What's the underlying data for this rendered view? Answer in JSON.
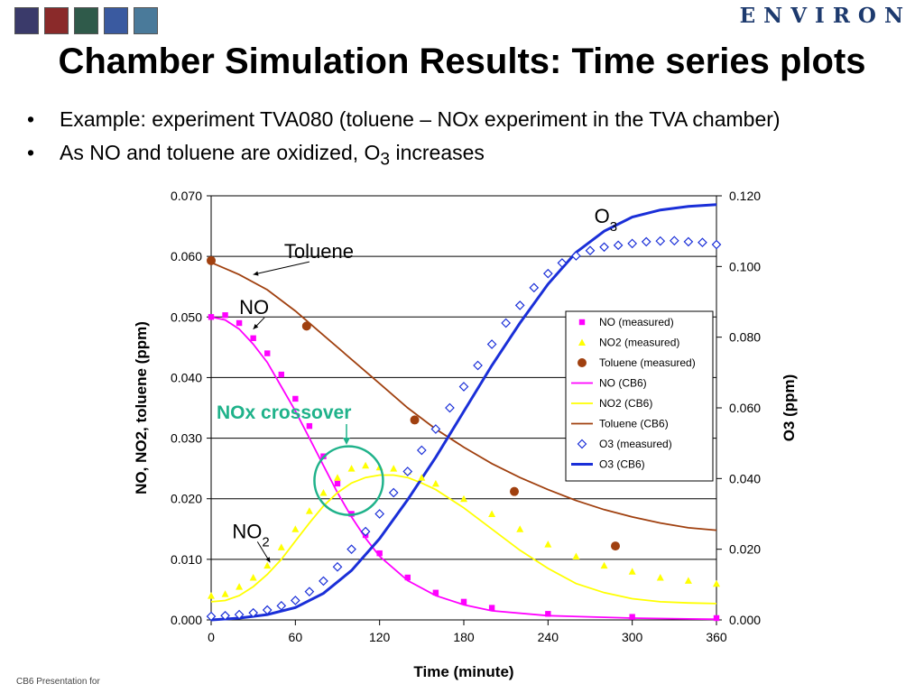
{
  "header": {
    "thumbnails": [
      {
        "name": "thumbnail-1",
        "color": "#3a3a6a"
      },
      {
        "name": "thumbnail-2",
        "color": "#8a2a2a"
      },
      {
        "name": "thumbnail-3",
        "color": "#2f5a4a"
      },
      {
        "name": "thumbnail-4",
        "color": "#3a5aa0"
      },
      {
        "name": "thumbnail-5",
        "color": "#4a7a9a"
      }
    ],
    "logo_text": "ENVIRON"
  },
  "slide": {
    "title": "Chamber Simulation Results: Time series plots",
    "bullets": [
      {
        "text": "Example: experiment TVA080 (toluene – NOx experiment in the TVA chamber)"
      },
      {
        "text_before": "As NO and toluene are oxidized, O",
        "sub": "3",
        "text_after": " increases"
      }
    ],
    "bullet_glyph": "•",
    "footer": "CB6 Presentation for"
  },
  "chart_data": {
    "type": "line",
    "xlabel": "Time (minute)",
    "ylabel_left": "NO, NO2, toluene (ppm)",
    "ylabel_right": "O3 (ppm)",
    "xlim": [
      0,
      360
    ],
    "ylim_left": [
      0,
      0.07
    ],
    "ylim_right": [
      0,
      0.12
    ],
    "x_ticks": [
      "0",
      "60",
      "120",
      "180",
      "240",
      "300",
      "360"
    ],
    "y_left_ticks": [
      "0.000",
      "0.010",
      "0.020",
      "0.030",
      "0.040",
      "0.050",
      "0.060",
      "0.070"
    ],
    "y_right_ticks": [
      "0.000",
      "0.020",
      "0.040",
      "0.060",
      "0.080",
      "0.100",
      "0.120"
    ],
    "grid": "horizontal",
    "legend_position": "right-middle",
    "colors": {
      "no": "#ff00ff",
      "no2": "#ffff00",
      "toluene": "#a0400f",
      "o3": "#1a2fd8",
      "circle": "#1fb28a"
    },
    "series": [
      {
        "name": "NO (measured)",
        "axis": "left",
        "kind": "markers",
        "marker": "square",
        "x": [
          0,
          10,
          20,
          30,
          40,
          50,
          60,
          70,
          80,
          90,
          100,
          110,
          120,
          140,
          160,
          180,
          200,
          240,
          300,
          360
        ],
        "y": [
          0.05,
          0.0503,
          0.049,
          0.0465,
          0.044,
          0.0405,
          0.0365,
          0.032,
          0.027,
          0.0225,
          0.0175,
          0.014,
          0.011,
          0.007,
          0.0045,
          0.003,
          0.002,
          0.001,
          0.0005,
          0.0003
        ]
      },
      {
        "name": "NO2 (measured)",
        "axis": "left",
        "kind": "markers",
        "marker": "triangle",
        "x": [
          0,
          10,
          20,
          30,
          40,
          50,
          60,
          70,
          80,
          90,
          100,
          110,
          120,
          130,
          140,
          150,
          160,
          180,
          200,
          220,
          240,
          260,
          280,
          300,
          320,
          340,
          360
        ],
        "y": [
          0.004,
          0.0043,
          0.0055,
          0.007,
          0.009,
          0.012,
          0.015,
          0.018,
          0.021,
          0.0235,
          0.025,
          0.0255,
          0.0252,
          0.025,
          0.0245,
          0.0235,
          0.0225,
          0.02,
          0.0175,
          0.015,
          0.0125,
          0.0105,
          0.009,
          0.008,
          0.007,
          0.0065,
          0.006
        ]
      },
      {
        "name": "Toluene (measured)",
        "axis": "left",
        "kind": "markers",
        "marker": "circle",
        "x": [
          0,
          68,
          145,
          216,
          288
        ],
        "y": [
          0.0593,
          0.0485,
          0.033,
          0.0212,
          0.0122
        ]
      },
      {
        "name": "NO (CB6)",
        "axis": "left",
        "kind": "line",
        "x": [
          0,
          10,
          20,
          30,
          40,
          50,
          60,
          70,
          80,
          90,
          100,
          110,
          120,
          140,
          160,
          180,
          200,
          240,
          300,
          360
        ],
        "y": [
          0.05,
          0.0495,
          0.048,
          0.0455,
          0.0425,
          0.0385,
          0.0345,
          0.03,
          0.0255,
          0.021,
          0.017,
          0.0135,
          0.0105,
          0.0065,
          0.004,
          0.0025,
          0.0015,
          0.0007,
          0.0003,
          0.0001
        ]
      },
      {
        "name": "NO2 (CB6)",
        "axis": "left",
        "kind": "line",
        "x": [
          0,
          10,
          20,
          30,
          40,
          50,
          60,
          70,
          80,
          90,
          100,
          110,
          120,
          130,
          140,
          150,
          160,
          180,
          200,
          220,
          240,
          260,
          280,
          300,
          320,
          340,
          360
        ],
        "y": [
          0.003,
          0.0032,
          0.004,
          0.0055,
          0.0075,
          0.01,
          0.013,
          0.016,
          0.0188,
          0.021,
          0.0226,
          0.0235,
          0.0239,
          0.0239,
          0.0235,
          0.0226,
          0.0215,
          0.0185,
          0.015,
          0.0115,
          0.0085,
          0.006,
          0.0045,
          0.0035,
          0.003,
          0.0028,
          0.0027
        ]
      },
      {
        "name": "Toluene (CB6)",
        "axis": "left",
        "kind": "line",
        "x": [
          0,
          20,
          40,
          60,
          80,
          100,
          120,
          140,
          160,
          180,
          200,
          220,
          240,
          260,
          280,
          300,
          320,
          340,
          360
        ],
        "y": [
          0.059,
          0.057,
          0.0545,
          0.051,
          0.047,
          0.043,
          0.039,
          0.035,
          0.0315,
          0.0285,
          0.0258,
          0.0235,
          0.0215,
          0.0197,
          0.0182,
          0.017,
          0.016,
          0.0152,
          0.0148
        ]
      },
      {
        "name": "O3 (measured)",
        "axis": "right",
        "kind": "markers",
        "marker": "diamond",
        "x": [
          0,
          10,
          20,
          30,
          40,
          50,
          60,
          70,
          80,
          90,
          100,
          110,
          120,
          130,
          140,
          150,
          160,
          170,
          180,
          190,
          200,
          210,
          220,
          230,
          240,
          250,
          260,
          270,
          280,
          290,
          300,
          310,
          320,
          330,
          340,
          350,
          360
        ],
        "y": [
          0.001,
          0.0012,
          0.0015,
          0.002,
          0.0028,
          0.004,
          0.0055,
          0.008,
          0.011,
          0.015,
          0.02,
          0.025,
          0.03,
          0.036,
          0.042,
          0.048,
          0.054,
          0.06,
          0.066,
          0.072,
          0.078,
          0.084,
          0.089,
          0.094,
          0.098,
          0.101,
          0.103,
          0.1045,
          0.1055,
          0.106,
          0.1065,
          0.107,
          0.1072,
          0.1073,
          0.107,
          0.1068,
          0.1062
        ]
      },
      {
        "name": "O3 (CB6)",
        "axis": "right",
        "kind": "line",
        "x": [
          0,
          20,
          40,
          60,
          80,
          100,
          120,
          140,
          160,
          180,
          200,
          220,
          240,
          260,
          280,
          300,
          320,
          340,
          360
        ],
        "y": [
          0.0,
          0.0005,
          0.0015,
          0.0035,
          0.0075,
          0.014,
          0.023,
          0.034,
          0.046,
          0.059,
          0.072,
          0.084,
          0.095,
          0.104,
          0.11,
          0.114,
          0.116,
          0.117,
          0.1175
        ]
      }
    ],
    "annotations": [
      {
        "text": "Toluene",
        "x": 52,
        "y": 0.0597,
        "arrow_to": [
          30,
          0.057
        ]
      },
      {
        "text": "NO",
        "x": 20,
        "y": 0.0505,
        "arrow_to": [
          30,
          0.048
        ]
      },
      {
        "text_before": "NO",
        "sub": "2",
        "x": 15,
        "y": 0.0135,
        "arrow_to": [
          42,
          0.0095
        ]
      },
      {
        "text_before": "O",
        "sub": "3",
        "x": 273,
        "y": 0.0655
      }
    ],
    "crossover": {
      "label": "NOx crossover",
      "center_x": 98,
      "center_y": 0.023,
      "label_x": 70,
      "label_y": 0.0338
    }
  }
}
